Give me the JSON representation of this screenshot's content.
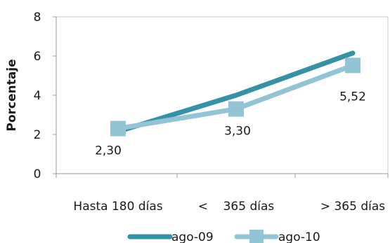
{
  "chart_data": {
    "type": "line",
    "categories": [
      "Hasta 180 días",
      "<    365 días",
      "> 365 días"
    ],
    "ylabel": "Porcentaje",
    "ylim": [
      0,
      8
    ],
    "yticks": [
      0,
      2,
      4,
      6,
      8
    ],
    "legend_position": "bottom",
    "series": [
      {
        "name": "ago-09",
        "values": [
          2.15,
          4.0,
          6.15
        ],
        "color": "#3592a6",
        "marker": "none"
      },
      {
        "name": "ago-10",
        "values": [
          2.3,
          3.3,
          5.52
        ],
        "color": "#93c4d6",
        "marker": "square",
        "data_labels": [
          "2,30",
          "3,30",
          "5,52"
        ]
      }
    ]
  }
}
